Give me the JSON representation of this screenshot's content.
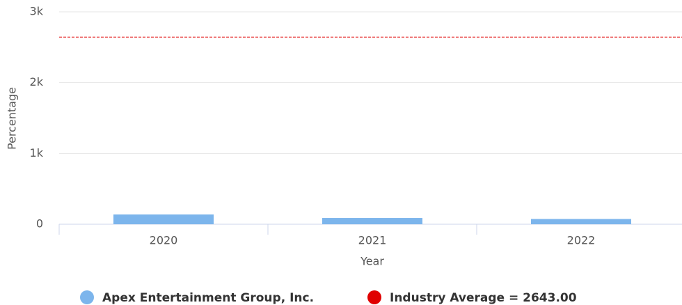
{
  "chart_data": {
    "type": "bar",
    "categories": [
      "2020",
      "2021",
      "2022"
    ],
    "series": [
      {
        "name": "Apex Entertainment Group, Inc.",
        "color": "#7cb5ec",
        "values": [
          138,
          88,
          74
        ]
      }
    ],
    "reference_line": {
      "name": "Industry Average = 2643.00",
      "value": 2643,
      "color": "#e00000"
    },
    "x_label": "Year",
    "y_label": "Percentage",
    "ylim": [
      0,
      3000
    ],
    "yticks": [
      {
        "value": 0,
        "label": "0"
      },
      {
        "value": 1000,
        "label": "1k"
      },
      {
        "value": 2000,
        "label": "2k"
      },
      {
        "value": 3000,
        "label": "3k"
      }
    ],
    "grid": true
  }
}
